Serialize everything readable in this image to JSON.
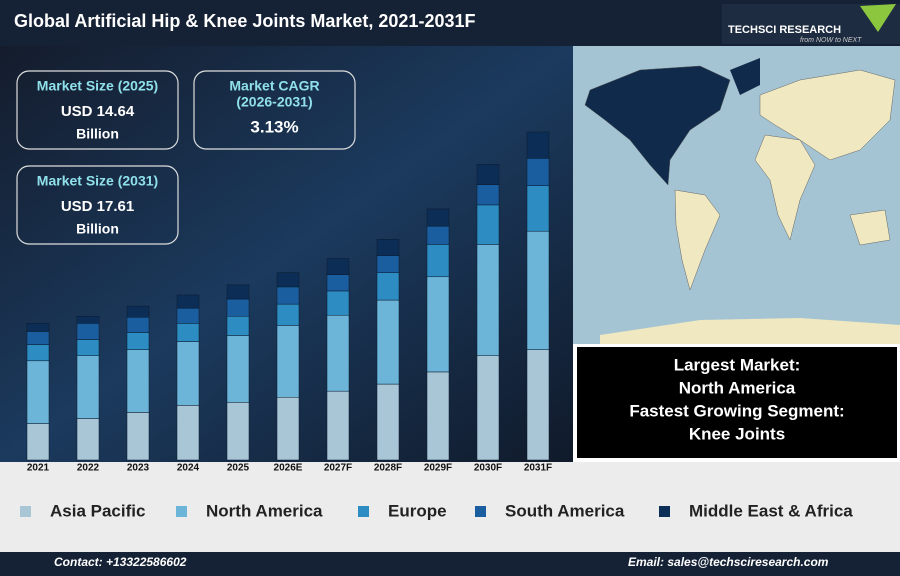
{
  "header": {
    "title": "Global Artificial Hip & Knee Joints Market, 2021-2031F",
    "logo": "TECHSCI RESEARCH",
    "tagline": "from NOW to NEXT"
  },
  "stats": [
    {
      "label": [
        "Market Size (2025)"
      ],
      "value": "USD 14.64",
      "unit": "Billion"
    },
    {
      "label": [
        "Market CAGR",
        "(2026-2031)"
      ],
      "value": "3.13%"
    },
    {
      "label": [
        "Market Size (2031)"
      ],
      "value": "USD 17.61",
      "unit": "Billion"
    }
  ],
  "info_box": [
    "Largest Market:",
    "North America",
    "Fastest Growing Segment:",
    "Knee Joints"
  ],
  "chart_data": {
    "type": "stacked_bar",
    "categories": [
      "2021",
      "2022",
      "2023",
      "2024",
      "2025",
      "2026E",
      "2027F",
      "2028F",
      "2029F",
      "2030F",
      "2031F"
    ],
    "series": [
      {
        "name": "Asia Pacific",
        "color": "#a9c6d6",
        "values": [
          36,
          41,
          47,
          54,
          57,
          62,
          68,
          75,
          87,
          103,
          109
        ]
      },
      {
        "name": "North America",
        "color": "#6cb4d8",
        "values": [
          62,
          62,
          62,
          63,
          66,
          71,
          75,
          83,
          94,
          110,
          117
        ]
      },
      {
        "name": "Europe",
        "color": "#2d8cc2",
        "values": [
          16,
          16,
          17,
          18,
          19,
          21,
          24,
          27,
          32,
          39,
          45
        ]
      },
      {
        "name": "South America",
        "color": "#1a5e9f",
        "values": [
          13,
          16,
          15,
          15,
          17,
          17,
          16,
          17,
          18,
          20,
          27
        ]
      },
      {
        "name": "Middle East & Africa",
        "color": "#0c2d55",
        "values": [
          8,
          7,
          11,
          13,
          14,
          14,
          16,
          16,
          17,
          20,
          26
        ]
      }
    ]
  },
  "footer": {
    "contact": "Contact: +13322586602",
    "email": "Email: sales@techsciresearch.com"
  }
}
